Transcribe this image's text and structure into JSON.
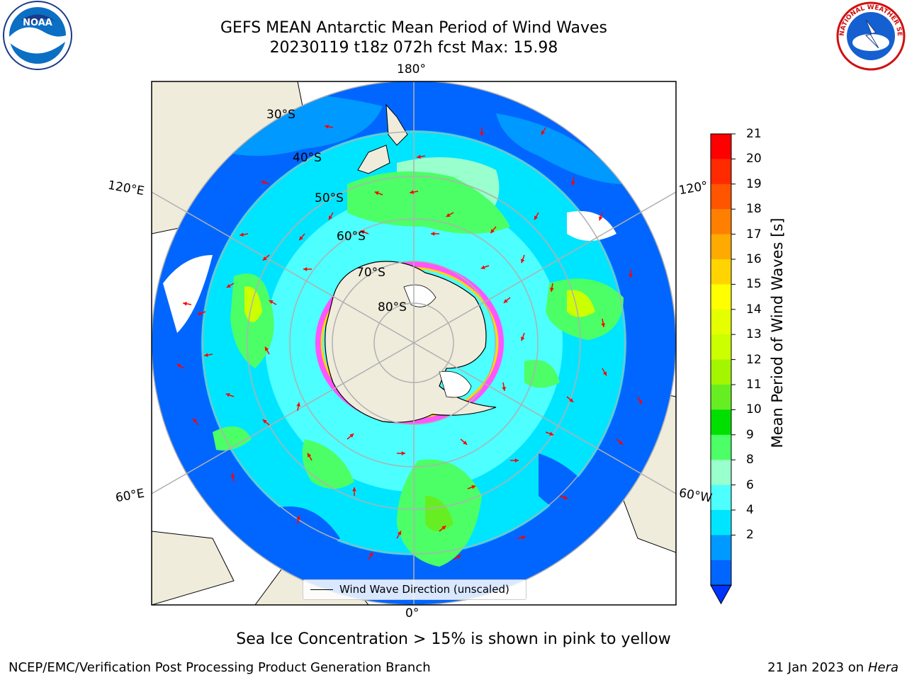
{
  "title": {
    "line1": "GEFS MEAN Antarctic Mean Period of Wind Waves",
    "line2": "20230119 t18z 072h fcst   Max: 15.98"
  },
  "caption": "Sea Ice Concentration > 15% is shown in pink to yellow",
  "footer": {
    "left": "NCEP/EMC/Verification Post Processing Product Generation Branch",
    "date": "21 Jan 2023 on ",
    "machine": "Hera"
  },
  "legend": {
    "label": "Wind Wave Direction (unscaled)"
  },
  "colorbar": {
    "label": "Mean Period of Wind Waves [s]",
    "ticks": [
      "21",
      "20",
      "19",
      "18",
      "17",
      "16",
      "15",
      "14",
      "13",
      "12",
      "11",
      "10",
      "9",
      "8",
      "6",
      "4",
      "2"
    ],
    "colors": [
      "#ff0000",
      "#ff2a00",
      "#ff5500",
      "#ff8000",
      "#ffaa00",
      "#ffd400",
      "#ffff00",
      "#e6ff00",
      "#ccff00",
      "#a3f500",
      "#66ee22",
      "#00e000",
      "#4cff66",
      "#99ffcc",
      "#4dffff",
      "#00e5ff",
      "#0099ff",
      "#0066ff"
    ]
  },
  "map": {
    "projection": "South polar stereographic",
    "lon_labels": {
      "top": "180°",
      "bottom": "0°",
      "left_upper": "120°E",
      "left_lower": "60°E",
      "right_upper": "120°",
      "right_lower": "60°W"
    },
    "lat_labels": [
      "30°S",
      "40°S",
      "50°S",
      "60°S",
      "70°S",
      "80°S"
    ]
  },
  "logos": {
    "noaa": "NOAA",
    "nws": "NATIONAL WEATHER SERVICE"
  },
  "icons": {
    "noaa_logo": "noaa-logo-icon",
    "nws_logo": "nws-logo-icon"
  }
}
